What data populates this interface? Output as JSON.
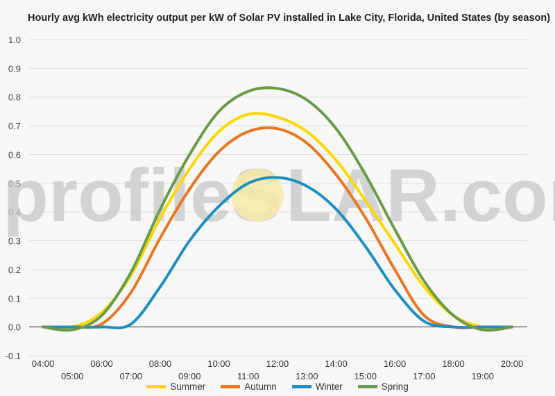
{
  "chart_data": {
    "type": "line",
    "title": "Hourly avg kWh electricity output per kW of Solar PV installed in Lake City, Florida, United States (by season)",
    "xlabel": "",
    "ylabel": "",
    "ylim": [
      -0.1,
      1.0
    ],
    "yticks": [
      -0.1,
      0.0,
      0.1,
      0.2,
      0.3,
      0.4,
      0.5,
      0.6,
      0.7,
      0.8,
      0.9,
      1.0
    ],
    "ytick_labels": [
      "-0.1",
      "0.0",
      "0.1",
      "0.2",
      "0.3",
      "0.4",
      "0.5",
      "0.6",
      "0.7",
      "0.8",
      "0.9",
      "1.0"
    ],
    "categories": [
      "04:00",
      "05:00",
      "06:00",
      "07:00",
      "08:00",
      "09:00",
      "10:00",
      "11:00",
      "12:00",
      "13:00",
      "14:00",
      "15:00",
      "16:00",
      "17:00",
      "18:00",
      "19:00",
      "20:00"
    ],
    "grid": true,
    "legend_position": "bottom",
    "watermark": {
      "left": "profileS",
      "right": "LAR.com"
    },
    "series": [
      {
        "name": "Summer",
        "color": "#FFD700",
        "values": [
          0.0,
          0.0,
          0.05,
          0.18,
          0.38,
          0.55,
          0.68,
          0.74,
          0.73,
          0.68,
          0.58,
          0.44,
          0.29,
          0.14,
          0.04,
          0.0,
          0.0
        ]
      },
      {
        "name": "Autumn",
        "color": "#E87722",
        "values": [
          0.0,
          0.0,
          0.01,
          0.12,
          0.31,
          0.48,
          0.61,
          0.68,
          0.69,
          0.64,
          0.53,
          0.38,
          0.2,
          0.04,
          0.0,
          0.0,
          0.0
        ]
      },
      {
        "name": "Winter",
        "color": "#1F8FBF",
        "values": [
          0.0,
          0.0,
          0.0,
          0.01,
          0.14,
          0.3,
          0.42,
          0.5,
          0.52,
          0.49,
          0.41,
          0.28,
          0.13,
          0.02,
          0.0,
          0.0,
          0.0
        ]
      },
      {
        "name": "Spring",
        "color": "#6A9A48",
        "values": [
          0.0,
          -0.01,
          0.04,
          0.19,
          0.41,
          0.6,
          0.75,
          0.82,
          0.83,
          0.79,
          0.69,
          0.53,
          0.34,
          0.16,
          0.04,
          -0.01,
          0.0
        ]
      }
    ]
  }
}
